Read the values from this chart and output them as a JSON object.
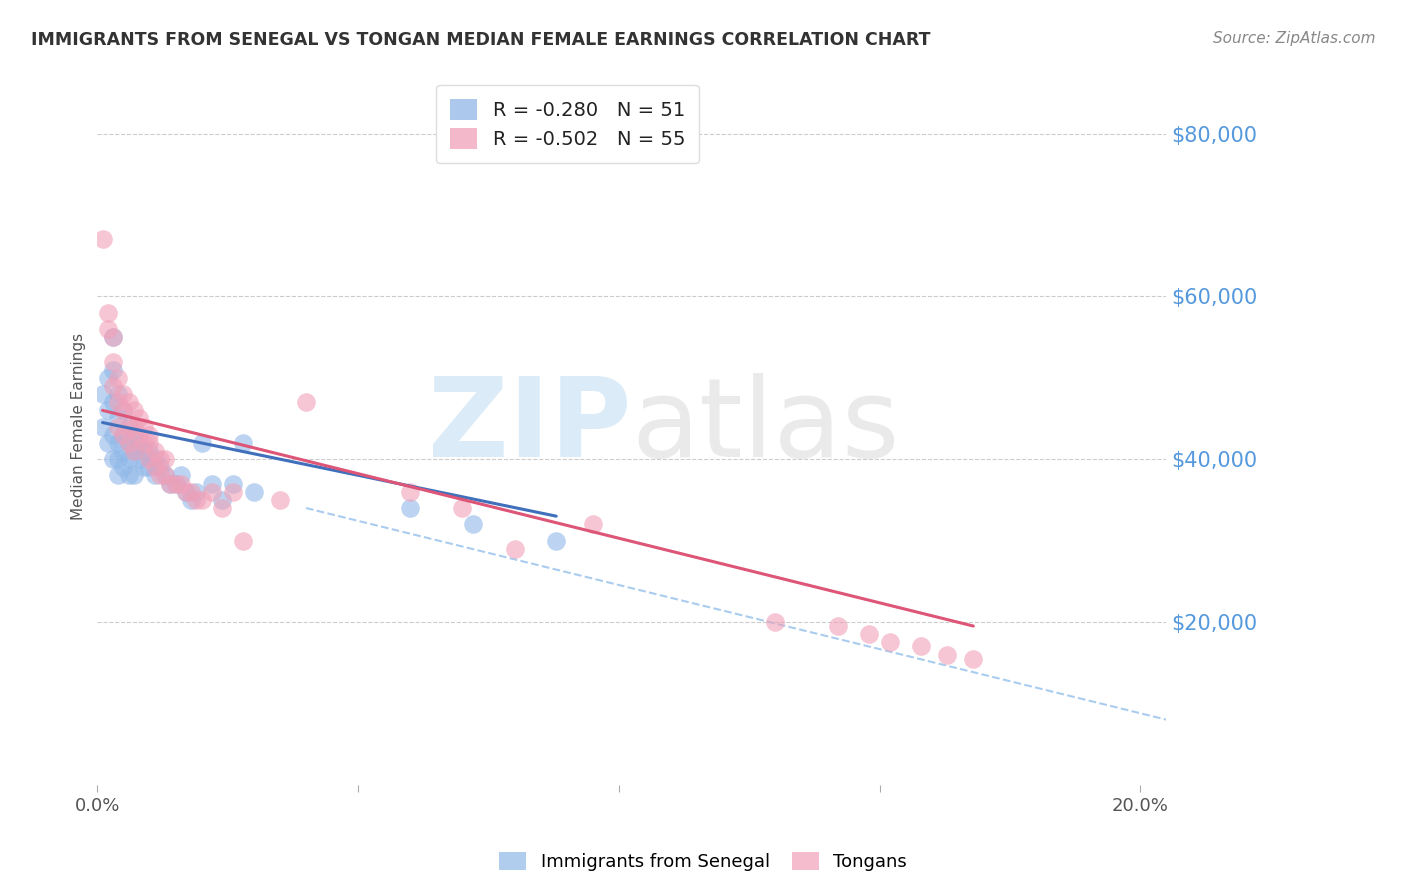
{
  "title": "IMMIGRANTS FROM SENEGAL VS TONGAN MEDIAN FEMALE EARNINGS CORRELATION CHART",
  "source": "Source: ZipAtlas.com",
  "ylabel": "Median Female Earnings",
  "xlim": [
    0.0,
    0.205
  ],
  "ylim": [
    0,
    88000
  ],
  "ytick_vals": [
    20000,
    40000,
    60000,
    80000
  ],
  "ytick_labels": [
    "$20,000",
    "$40,000",
    "$60,000",
    "$80,000"
  ],
  "xticks": [
    0.0,
    0.05,
    0.1,
    0.15,
    0.2
  ],
  "xtick_labels": [
    "0.0%",
    "",
    "",
    "",
    "20.0%"
  ],
  "legend_entries": [
    {
      "label": "R = -0.280   N = 51",
      "color": "#a8c8f0"
    },
    {
      "label": "R = -0.502   N = 55",
      "color": "#f4a0b0"
    }
  ],
  "legend_label1": "Immigrants from Senegal",
  "legend_label2": "Tongans",
  "color_senegal": "#90b8e8",
  "color_tongan": "#f0a0b8",
  "color_senegal_line": "#4070bb",
  "color_tongan_line": "#dd5577",
  "color_dashed_line": "#aaccee",
  "ytick_color": "#5599dd",
  "xtick_color": "#555555",
  "grid_color": "#cccccc",
  "background_color": "#ffffff",
  "senegal_x": [
    0.001,
    0.001,
    0.002,
    0.002,
    0.002,
    0.003,
    0.003,
    0.003,
    0.003,
    0.003,
    0.004,
    0.004,
    0.004,
    0.004,
    0.004,
    0.005,
    0.005,
    0.005,
    0.005,
    0.006,
    0.006,
    0.006,
    0.006,
    0.007,
    0.007,
    0.007,
    0.008,
    0.008,
    0.009,
    0.009,
    0.01,
    0.01,
    0.011,
    0.011,
    0.012,
    0.013,
    0.014,
    0.015,
    0.016,
    0.017,
    0.018,
    0.019,
    0.02,
    0.022,
    0.024,
    0.026,
    0.028,
    0.03,
    0.06,
    0.072,
    0.088
  ],
  "senegal_y": [
    48000,
    44000,
    50000,
    46000,
    42000,
    55000,
    51000,
    47000,
    43000,
    40000,
    48000,
    45000,
    42000,
    40000,
    38000,
    46000,
    43000,
    41000,
    39000,
    44000,
    42000,
    40000,
    38000,
    43000,
    41000,
    38000,
    42000,
    40000,
    41000,
    39000,
    41000,
    39000,
    40000,
    38000,
    39000,
    38000,
    37000,
    37000,
    38000,
    36000,
    35000,
    36000,
    42000,
    37000,
    35000,
    37000,
    42000,
    36000,
    34000,
    32000,
    30000
  ],
  "tongan_x": [
    0.001,
    0.002,
    0.002,
    0.003,
    0.003,
    0.003,
    0.004,
    0.004,
    0.004,
    0.005,
    0.005,
    0.005,
    0.006,
    0.006,
    0.006,
    0.007,
    0.007,
    0.007,
    0.008,
    0.008,
    0.009,
    0.009,
    0.01,
    0.01,
    0.01,
    0.011,
    0.011,
    0.012,
    0.012,
    0.013,
    0.013,
    0.014,
    0.015,
    0.016,
    0.017,
    0.018,
    0.019,
    0.02,
    0.022,
    0.024,
    0.026,
    0.028,
    0.035,
    0.04,
    0.06,
    0.07,
    0.08,
    0.095,
    0.13,
    0.142,
    0.148,
    0.152,
    0.158,
    0.163,
    0.168
  ],
  "tongan_y": [
    67000,
    58000,
    56000,
    55000,
    52000,
    49000,
    50000,
    47000,
    44000,
    48000,
    46000,
    43000,
    47000,
    44000,
    42000,
    46000,
    44000,
    41000,
    45000,
    43000,
    44000,
    42000,
    43000,
    42000,
    40000,
    41000,
    39000,
    40000,
    38000,
    40000,
    38000,
    37000,
    37000,
    37000,
    36000,
    36000,
    35000,
    35000,
    36000,
    34000,
    36000,
    30000,
    35000,
    47000,
    36000,
    34000,
    29000,
    32000,
    20000,
    19500,
    18500,
    17500,
    17000,
    16000,
    15500
  ],
  "senegal_line_x": [
    0.001,
    0.088
  ],
  "senegal_line_y": [
    44500,
    33000
  ],
  "tongan_line_x": [
    0.001,
    0.168
  ],
  "tongan_line_y": [
    46000,
    19500
  ],
  "dashed_line_x": [
    0.04,
    0.205
  ],
  "dashed_line_y": [
    34000,
    8000
  ]
}
